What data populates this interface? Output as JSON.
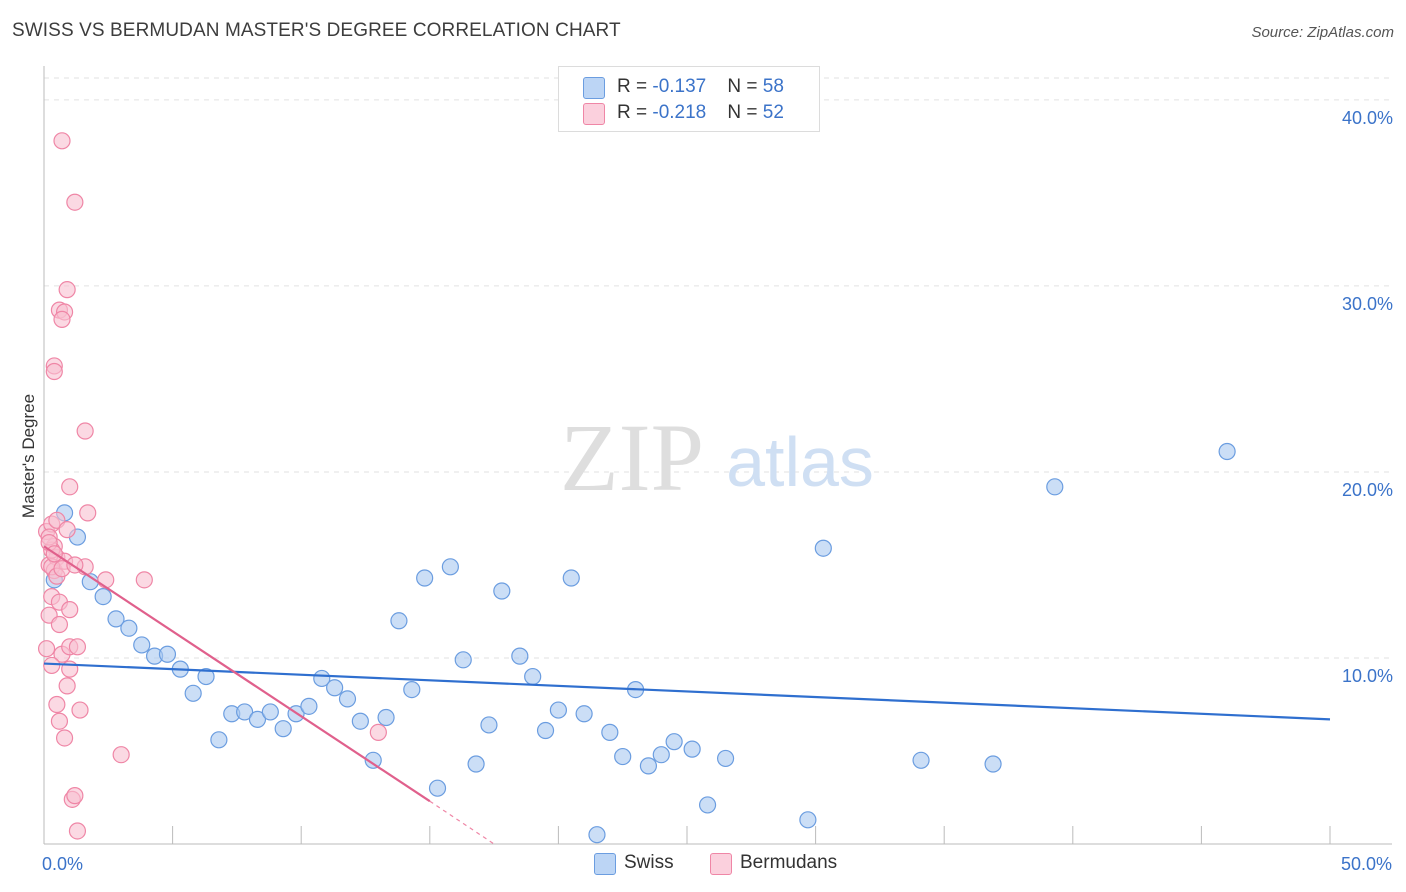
{
  "header": {
    "title": "SWISS VS BERMUDAN MASTER'S DEGREE CORRELATION CHART",
    "source": "Source: ZipAtlas.com"
  },
  "watermark": {
    "zip": "ZIP",
    "atlas": "atlas"
  },
  "legend_top": {
    "rows": [
      {
        "r_label": "R = ",
        "r_value": "-0.137",
        "n_label": "N = ",
        "n_value": "58"
      },
      {
        "r_label": "R = ",
        "r_value": "-0.218",
        "n_label": "N = ",
        "n_value": "52"
      }
    ]
  },
  "legend_bottom": {
    "swiss": "Swiss",
    "bermudans": "Bermudans"
  },
  "colors": {
    "swiss_fill": "#a9c8f0",
    "swiss_stroke": "#6b9de0",
    "swiss_line": "#2f6fcf",
    "berm_fill": "#f8bfd0",
    "berm_stroke": "#ef86a6",
    "berm_line": "#e0608c",
    "axis_text": "#3b73c9",
    "grid": "#e2e2e2"
  },
  "chart_data": {
    "type": "scatter",
    "title": "SWISS VS BERMUDAN MASTER'S DEGREE CORRELATION CHART",
    "xlabel": "",
    "ylabel": "Master's Degree",
    "xlim": [
      0,
      50
    ],
    "ylim": [
      0,
      41.5
    ],
    "x_tick_labels": [
      {
        "value": 0,
        "label": "0.0%"
      },
      {
        "value": 50,
        "label": "50.0%"
      }
    ],
    "y_tick_labels": [
      {
        "value": 10,
        "label": "10.0%"
      },
      {
        "value": 20,
        "label": "20.0%"
      },
      {
        "value": 30,
        "label": "30.0%"
      },
      {
        "value": 40,
        "label": "40.0%"
      }
    ],
    "series": [
      {
        "name": "Swiss",
        "R": -0.137,
        "N": 58,
        "trend": {
          "x": [
            0,
            50
          ],
          "y": [
            9.7,
            6.7
          ]
        },
        "points": [
          [
            0.4,
            14.2
          ],
          [
            0.8,
            17.8
          ],
          [
            1.3,
            16.5
          ],
          [
            1.8,
            14.1
          ],
          [
            2.3,
            13.3
          ],
          [
            2.8,
            12.1
          ],
          [
            3.3,
            11.6
          ],
          [
            3.8,
            10.7
          ],
          [
            4.3,
            10.1
          ],
          [
            4.8,
            10.2
          ],
          [
            5.3,
            9.4
          ],
          [
            5.8,
            8.1
          ],
          [
            6.3,
            9.0
          ],
          [
            6.8,
            5.6
          ],
          [
            7.3,
            7.0
          ],
          [
            7.8,
            7.1
          ],
          [
            8.3,
            6.7
          ],
          [
            8.8,
            7.1
          ],
          [
            9.3,
            6.2
          ],
          [
            9.8,
            7.0
          ],
          [
            10.3,
            7.4
          ],
          [
            10.8,
            8.9
          ],
          [
            11.3,
            8.4
          ],
          [
            11.8,
            7.8
          ],
          [
            12.3,
            6.6
          ],
          [
            12.8,
            4.5
          ],
          [
            13.3,
            6.8
          ],
          [
            13.8,
            12.0
          ],
          [
            14.3,
            8.3
          ],
          [
            14.8,
            14.3
          ],
          [
            15.3,
            3.0
          ],
          [
            15.8,
            14.9
          ],
          [
            16.3,
            9.9
          ],
          [
            16.8,
            4.3
          ],
          [
            17.3,
            6.4
          ],
          [
            17.8,
            13.6
          ],
          [
            18.5,
            10.1
          ],
          [
            19.0,
            9.0
          ],
          [
            19.5,
            6.1
          ],
          [
            20.0,
            7.2
          ],
          [
            20.5,
            14.3
          ],
          [
            21.0,
            7.0
          ],
          [
            21.5,
            0.5
          ],
          [
            22.0,
            6.0
          ],
          [
            22.5,
            4.7
          ],
          [
            23.0,
            8.3
          ],
          [
            23.5,
            4.2
          ],
          [
            24.0,
            4.8
          ],
          [
            24.5,
            5.5
          ],
          [
            25.2,
            5.1
          ],
          [
            25.8,
            2.1
          ],
          [
            26.5,
            4.6
          ],
          [
            29.7,
            1.3
          ],
          [
            30.3,
            15.9
          ],
          [
            34.1,
            4.5
          ],
          [
            36.9,
            4.3
          ],
          [
            39.3,
            19.2
          ],
          [
            46.0,
            21.1
          ]
        ]
      },
      {
        "name": "Bermudans",
        "R": -0.218,
        "N": 52,
        "trend": {
          "x": [
            0,
            15
          ],
          "y": [
            16.0,
            2.3
          ]
        },
        "trend_dashed": {
          "x": [
            15,
            17.5
          ],
          "y": [
            2.3,
            0
          ]
        },
        "points": [
          [
            0.1,
            16.8
          ],
          [
            0.2,
            15.0
          ],
          [
            0.1,
            10.5
          ],
          [
            0.3,
            17.2
          ],
          [
            0.4,
            16.0
          ],
          [
            0.3,
            13.3
          ],
          [
            0.5,
            15.4
          ],
          [
            0.2,
            12.3
          ],
          [
            0.6,
            11.8
          ],
          [
            0.4,
            14.7
          ],
          [
            0.7,
            10.2
          ],
          [
            0.3,
            15.8
          ],
          [
            0.5,
            7.5
          ],
          [
            0.6,
            6.6
          ],
          [
            0.8,
            5.7
          ],
          [
            0.9,
            8.5
          ],
          [
            1.0,
            9.4
          ],
          [
            1.1,
            2.4
          ],
          [
            1.2,
            2.6
          ],
          [
            1.3,
            0.7
          ],
          [
            1.4,
            7.2
          ],
          [
            1.0,
            10.6
          ],
          [
            1.3,
            10.6
          ],
          [
            1.6,
            14.9
          ],
          [
            0.7,
            37.8
          ],
          [
            1.2,
            34.5
          ],
          [
            0.9,
            29.8
          ],
          [
            0.6,
            28.7
          ],
          [
            0.8,
            28.6
          ],
          [
            0.7,
            28.2
          ],
          [
            0.4,
            25.7
          ],
          [
            0.4,
            25.4
          ],
          [
            1.6,
            22.2
          ],
          [
            1.0,
            19.2
          ],
          [
            1.7,
            17.8
          ],
          [
            0.5,
            17.4
          ],
          [
            0.2,
            16.5
          ],
          [
            0.8,
            15.2
          ],
          [
            0.3,
            14.9
          ],
          [
            0.5,
            14.4
          ],
          [
            0.6,
            13.0
          ],
          [
            1.0,
            12.6
          ],
          [
            0.2,
            16.2
          ],
          [
            0.4,
            15.6
          ],
          [
            0.7,
            14.8
          ],
          [
            2.4,
            14.2
          ],
          [
            3.9,
            14.2
          ],
          [
            3.0,
            4.8
          ],
          [
            13.0,
            6.0
          ],
          [
            0.3,
            9.6
          ],
          [
            0.9,
            16.9
          ],
          [
            1.2,
            15.0
          ]
        ]
      }
    ]
  }
}
